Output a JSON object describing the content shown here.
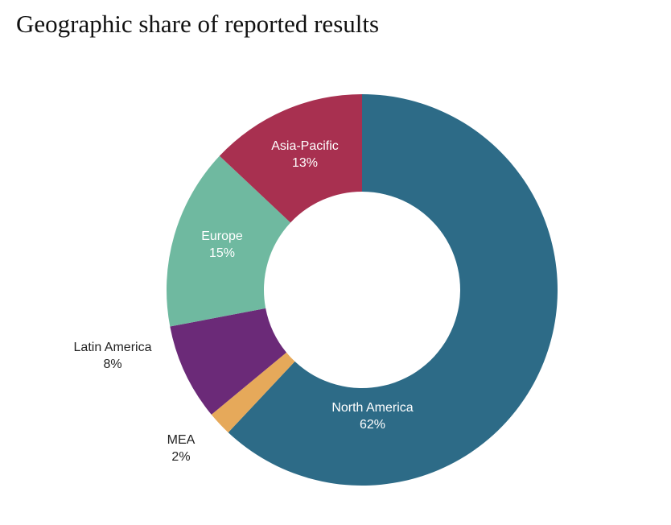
{
  "chart_data": {
    "type": "pie",
    "donut": true,
    "title": "Geographic share of reported results",
    "start": "top",
    "direction": "clockwise",
    "slices": [
      {
        "label": "North America",
        "value": 62,
        "value_label": "62%",
        "color": "#2d6b87",
        "label_position": "inside"
      },
      {
        "label": "MEA",
        "value": 2,
        "value_label": "2%",
        "color": "#e6a95a",
        "label_position": "outside"
      },
      {
        "label": "Latin America",
        "value": 8,
        "value_label": "8%",
        "color": "#6b2a78",
        "label_position": "outside"
      },
      {
        "label": "Europe",
        "value": 15,
        "value_label": "15%",
        "color": "#6fb9a0",
        "label_position": "inside"
      },
      {
        "label": "Asia-Pacific",
        "value": 13,
        "value_label": "13%",
        "color": "#a83050",
        "label_position": "inside"
      }
    ]
  }
}
